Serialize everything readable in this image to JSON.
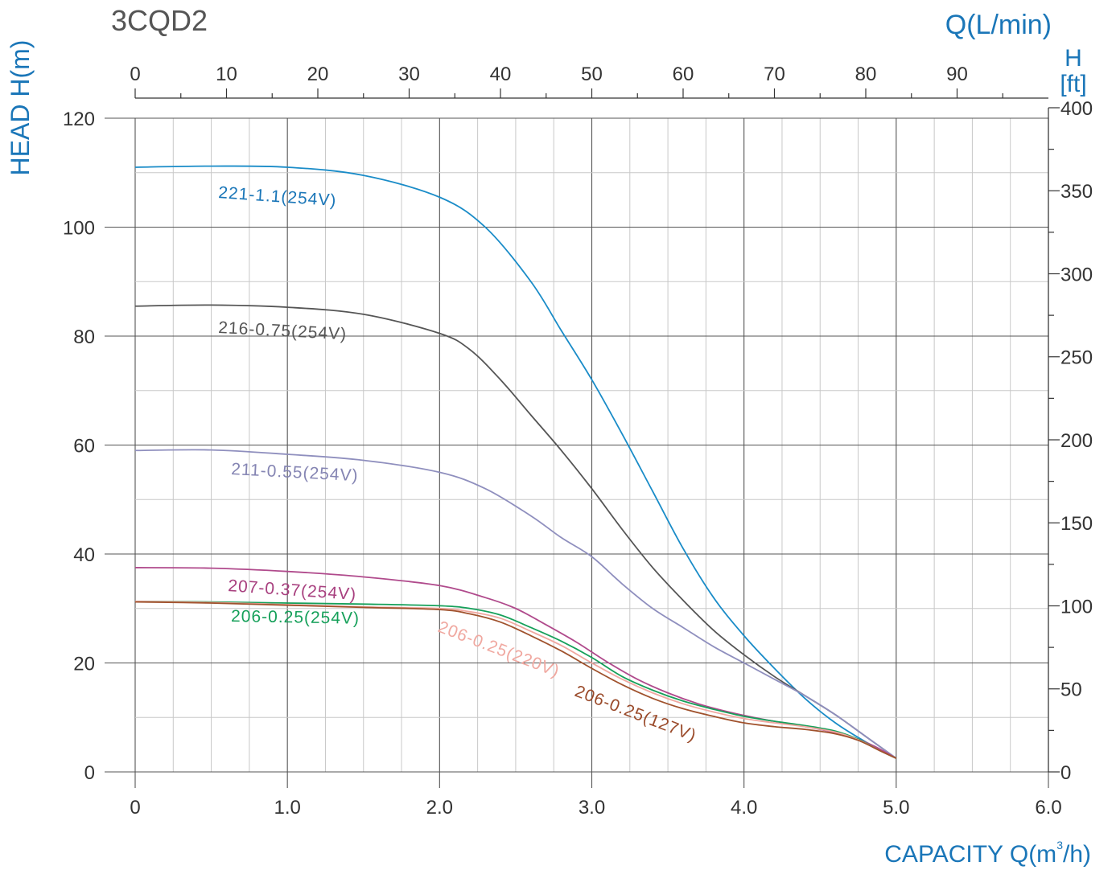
{
  "chart_data": {
    "type": "line",
    "title": "3CQD2",
    "xlabel": "CAPACITY Q(m³/h)",
    "x_unit_main": "CAPACITY Q(m",
    "x_unit_sup": "3",
    "x_unit_tail": "/h)",
    "ylabel": "HEAD H(m)",
    "top_axis_label": "Q(L/min)",
    "right_axis_label_1": "H",
    "right_axis_label_2": "[ft]",
    "xlim": [
      0,
      6.0
    ],
    "ylim": [
      0,
      120
    ],
    "x_ticks": [
      "0",
      "1.0",
      "2.0",
      "3.0",
      "4.0",
      "5.0",
      "6.0"
    ],
    "y_ticks": [
      "0",
      "20",
      "40",
      "60",
      "80",
      "100",
      "120"
    ],
    "top_ticks": [
      "0",
      "10",
      "20",
      "30",
      "40",
      "50",
      "60",
      "70",
      "80",
      "90"
    ],
    "right_ticks": [
      "0",
      "50",
      "100",
      "150",
      "200",
      "250",
      "300",
      "350",
      "400"
    ],
    "grid": true,
    "colors": {
      "axis_text": "#333333",
      "axis_title": "#1a76b8",
      "grid_major": "#555555",
      "grid_minor": "#c8c8c8"
    },
    "series": [
      {
        "name": "221-1.1(254V)",
        "color": "#1a8cc8",
        "label_color": "#1a76b8",
        "x": [
          0,
          0.5,
          1.0,
          1.5,
          2.0,
          2.3,
          2.6,
          2.8,
          3.0,
          3.2,
          3.4,
          3.6,
          3.8,
          4.0,
          4.2,
          4.4,
          4.6,
          4.8,
          5.0
        ],
        "y": [
          111,
          111.2,
          111,
          109.5,
          105.5,
          100,
          90,
          81,
          72,
          62,
          51.5,
          41,
          32,
          25,
          19,
          13.5,
          9,
          5.5,
          2.5
        ]
      },
      {
        "name": "216-0.75(254V)",
        "color": "#555555",
        "label_color": "#555555",
        "x": [
          0,
          0.5,
          1.0,
          1.5,
          2.0,
          2.2,
          2.4,
          2.6,
          2.8,
          3.0,
          3.2,
          3.4,
          3.6,
          3.8,
          4.0,
          4.2,
          4.4,
          4.6,
          4.8,
          5.0
        ],
        "y": [
          85.5,
          85.7,
          85.3,
          84,
          80.5,
          77.5,
          72,
          65.5,
          59,
          52,
          44.5,
          37.5,
          31.5,
          26,
          21.5,
          17.5,
          14,
          10.5,
          6.5,
          2.5
        ]
      },
      {
        "name": "211-0.55(254V)",
        "color": "#8f8fbe",
        "label_color": "#8585b3",
        "x": [
          0,
          0.5,
          1.0,
          1.5,
          2.0,
          2.3,
          2.6,
          2.8,
          3.0,
          3.2,
          3.4,
          3.6,
          3.8,
          4.0,
          4.2,
          4.4,
          4.6,
          4.8,
          5.0
        ],
        "y": [
          59,
          59.1,
          58.3,
          57.2,
          55,
          52,
          47,
          43,
          39.5,
          34.5,
          30,
          26.5,
          23,
          20,
          17,
          14,
          10.5,
          6.5,
          2.5
        ]
      },
      {
        "name": "207-0.37(254V)",
        "color": "#b04a8c",
        "label_color": "#a8407f",
        "x": [
          0,
          0.5,
          1.0,
          1.5,
          2.0,
          2.3,
          2.5,
          2.7,
          2.9,
          3.1,
          3.3,
          3.5,
          3.7,
          3.9,
          4.1,
          4.3,
          4.5,
          4.7,
          4.85,
          5.0
        ],
        "y": [
          37.5,
          37.4,
          36.8,
          35.8,
          34.2,
          32,
          30,
          27,
          23.8,
          20.2,
          17,
          14.5,
          12.5,
          11,
          9.8,
          8.8,
          7.8,
          6.5,
          4.8,
          2.5
        ]
      },
      {
        "name": "206-0.25(254V)",
        "color": "#16a05a",
        "label_color": "#16a05a",
        "x": [
          0,
          0.5,
          1.0,
          1.5,
          2.0,
          2.2,
          2.4,
          2.6,
          2.8,
          3.0,
          3.2,
          3.4,
          3.6,
          3.8,
          4.0,
          4.2,
          4.4,
          4.6,
          4.75,
          4.9,
          5.0
        ],
        "y": [
          31.3,
          31.2,
          31,
          30.8,
          30.5,
          30,
          28.8,
          26.5,
          24,
          21,
          17.5,
          15,
          13,
          11.5,
          10.2,
          9.3,
          8.5,
          7.5,
          6,
          3.8,
          2.5
        ]
      },
      {
        "name": "206-0.25(220V)",
        "color": "#f0a8a0",
        "label_color": "#f0a8a0",
        "x": [
          0,
          0.5,
          1.0,
          1.5,
          2.0,
          2.2,
          2.4,
          2.6,
          2.8,
          3.0,
          3.2,
          3.4,
          3.6,
          3.8,
          4.0,
          4.2,
          4.4,
          4.6,
          4.75,
          4.9,
          5.0
        ],
        "y": [
          31.3,
          31.1,
          30.7,
          30.3,
          30,
          29.4,
          28.2,
          25.8,
          23.2,
          20,
          17,
          14.5,
          12.5,
          11,
          9.8,
          9,
          8.3,
          7.3,
          5.9,
          3.8,
          2.5
        ]
      },
      {
        "name": "206-0.25(127V)",
        "color": "#a0522d",
        "label_color": "#9a4a2a",
        "x": [
          0,
          0.5,
          1.0,
          1.5,
          2.0,
          2.2,
          2.4,
          2.6,
          2.8,
          3.0,
          3.2,
          3.4,
          3.6,
          3.8,
          4.0,
          4.2,
          4.4,
          4.6,
          4.75,
          4.9,
          5.0
        ],
        "y": [
          31.2,
          31,
          30.6,
          30.2,
          29.8,
          29,
          27.5,
          25,
          22.2,
          19,
          16,
          13.5,
          11.6,
          10.2,
          9,
          8.3,
          7.8,
          7,
          5.8,
          3.8,
          2.5
        ]
      }
    ]
  }
}
